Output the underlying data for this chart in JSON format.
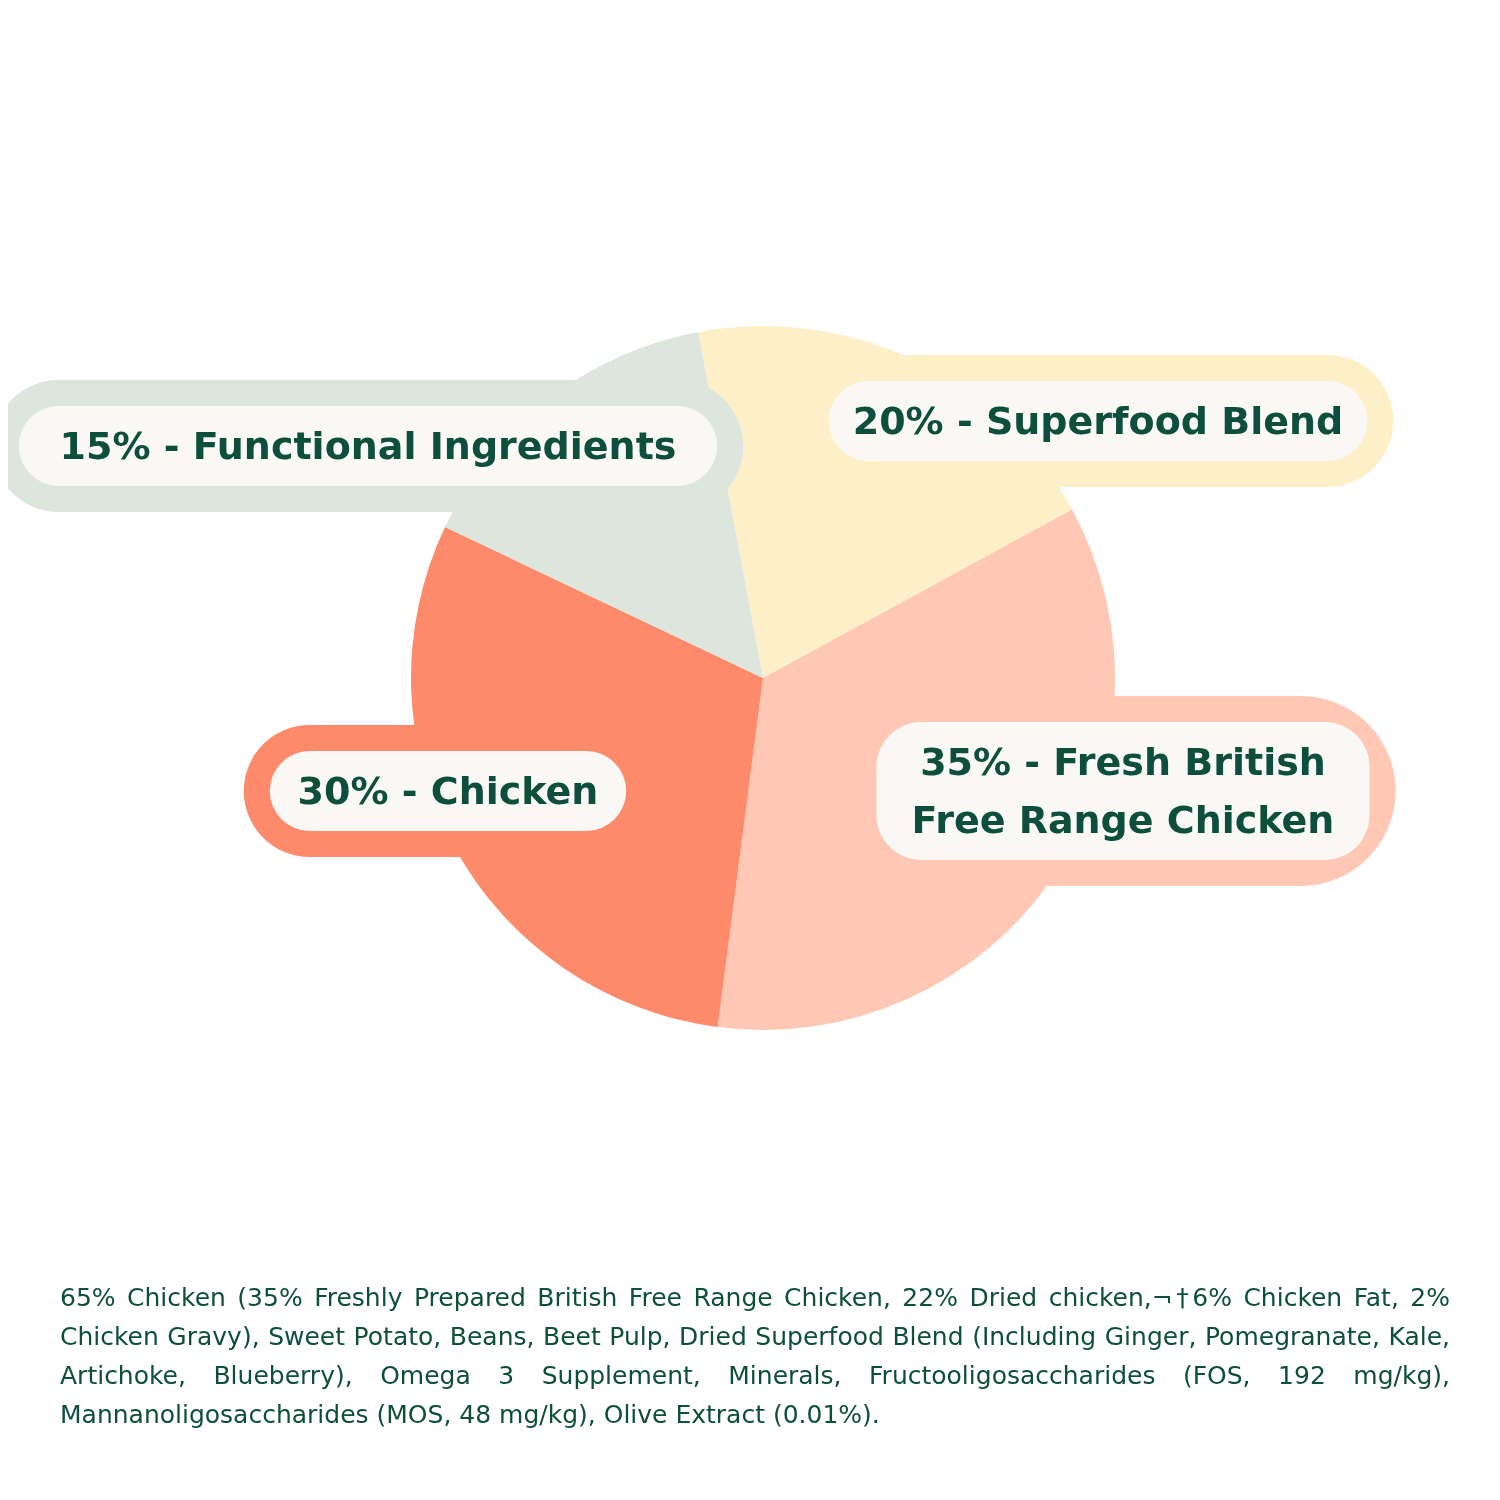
{
  "chart_data": {
    "type": "pie",
    "categories": [
      "20% - Superfood Blend",
      "35% - Fresh British Free Range Chicken",
      "30% - Chicken",
      "15% - Functional Ingredients"
    ],
    "values": [
      20,
      35,
      30,
      15
    ],
    "colors": [
      "#fdf0c8",
      "#fec8b4",
      "#fe8a6c",
      "#dce6dc"
    ],
    "annotations": [
      "65% Chicken (35% Freshly Prepared British Free Range Chicken, 22% Dried chicken,¬†6% Chicken Fat, 2% Chicken Gravy), Sweet Potato, Beans, Beet Pulp, Dried Superfood Blend (Including Ginger, Pomegranate, Kale, Artichoke, Blueberry), Omega 3 Supplement, Minerals, Fructooligosaccharides (FOS, 192 mg/kg), Mannanoligosaccharides (MOS, 48 mg/kg), Olive Extract (0.01%)."
    ]
  }
}
